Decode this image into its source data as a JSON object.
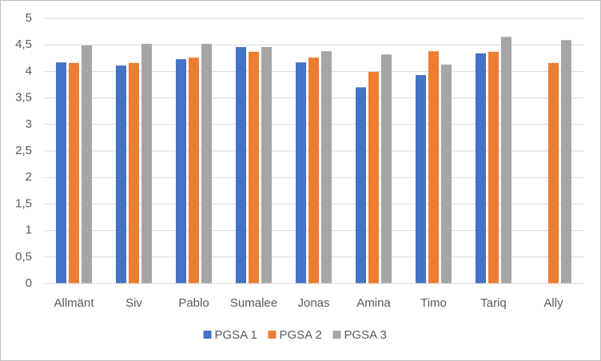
{
  "chart_data": {
    "type": "bar",
    "categories": [
      "Allmänt",
      "Siv",
      "Pablo",
      "Sumalee",
      "Jonas",
      "Amina",
      "Timo",
      "Tariq",
      "Ally"
    ],
    "series": [
      {
        "name": "PGSA 1",
        "color": "#4472c4",
        "values": [
          4.17,
          4.11,
          4.23,
          4.46,
          4.17,
          3.7,
          3.93,
          4.34,
          null
        ]
      },
      {
        "name": "PGSA 2",
        "color": "#ed7d31",
        "values": [
          4.16,
          4.16,
          4.26,
          4.37,
          4.26,
          3.99,
          4.38,
          4.37,
          4.16
        ]
      },
      {
        "name": "PGSA 3",
        "color": "#a5a5a5",
        "values": [
          4.49,
          4.52,
          4.52,
          4.46,
          4.38,
          4.32,
          4.13,
          4.65,
          4.59
        ]
      }
    ],
    "ylim": [
      0,
      5
    ],
    "yticks": [
      0,
      {
        "value": 0.5,
        "label": "0,5"
      },
      1,
      {
        "value": 1.5,
        "label": "1,5"
      },
      2,
      {
        "value": 2.5,
        "label": "2,5"
      },
      3,
      {
        "value": 3.5,
        "label": "3,5"
      },
      4,
      {
        "value": 4.5,
        "label": "4,5"
      },
      5
    ],
    "grid": true,
    "legend": "bottom"
  }
}
